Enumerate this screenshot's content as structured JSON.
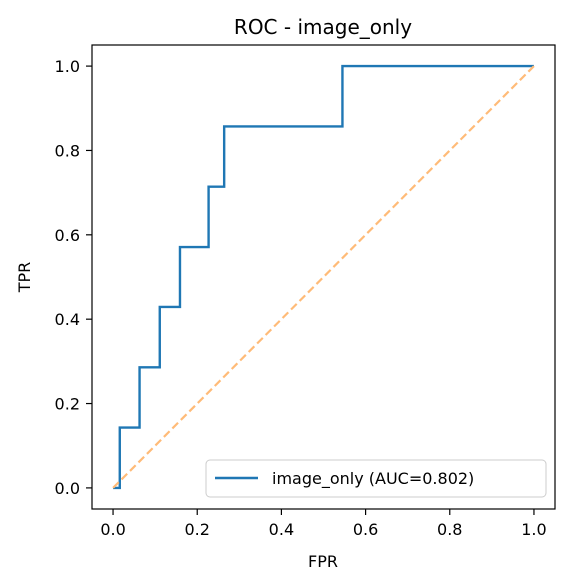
{
  "chart_data": {
    "type": "line",
    "title": "ROC - image_only",
    "xlabel": "FPR",
    "ylabel": "TPR",
    "xlim": [
      -0.05,
      1.05
    ],
    "ylim": [
      -0.05,
      1.05
    ],
    "xticks": [
      0.0,
      0.2,
      0.4,
      0.6,
      0.8,
      1.0
    ],
    "xtick_labels": [
      "0.0",
      "0.2",
      "0.4",
      "0.6",
      "0.8",
      "1.0"
    ],
    "yticks": [
      0.0,
      0.2,
      0.4,
      0.6,
      0.8,
      1.0
    ],
    "ytick_labels": [
      "0.0",
      "0.2",
      "0.4",
      "0.6",
      "0.8",
      "1.0"
    ],
    "grid": false,
    "legend_position": "lower-right",
    "series": [
      {
        "name": "image_only (AUC=0.802)",
        "color": "#1f77b4",
        "style": "solid",
        "x": [
          0.0,
          0.016,
          0.016,
          0.063,
          0.063,
          0.111,
          0.111,
          0.159,
          0.159,
          0.227,
          0.227,
          0.264,
          0.264,
          0.545,
          0.545,
          1.0
        ],
        "y": [
          0.0,
          0.0,
          0.143,
          0.143,
          0.286,
          0.286,
          0.429,
          0.429,
          0.571,
          0.571,
          0.714,
          0.714,
          0.857,
          0.857,
          1.0,
          1.0
        ]
      },
      {
        "color": "#ffbb78",
        "style": "dashed",
        "x": [
          0.0,
          1.0
        ],
        "y": [
          0.0,
          1.0
        ]
      }
    ]
  }
}
